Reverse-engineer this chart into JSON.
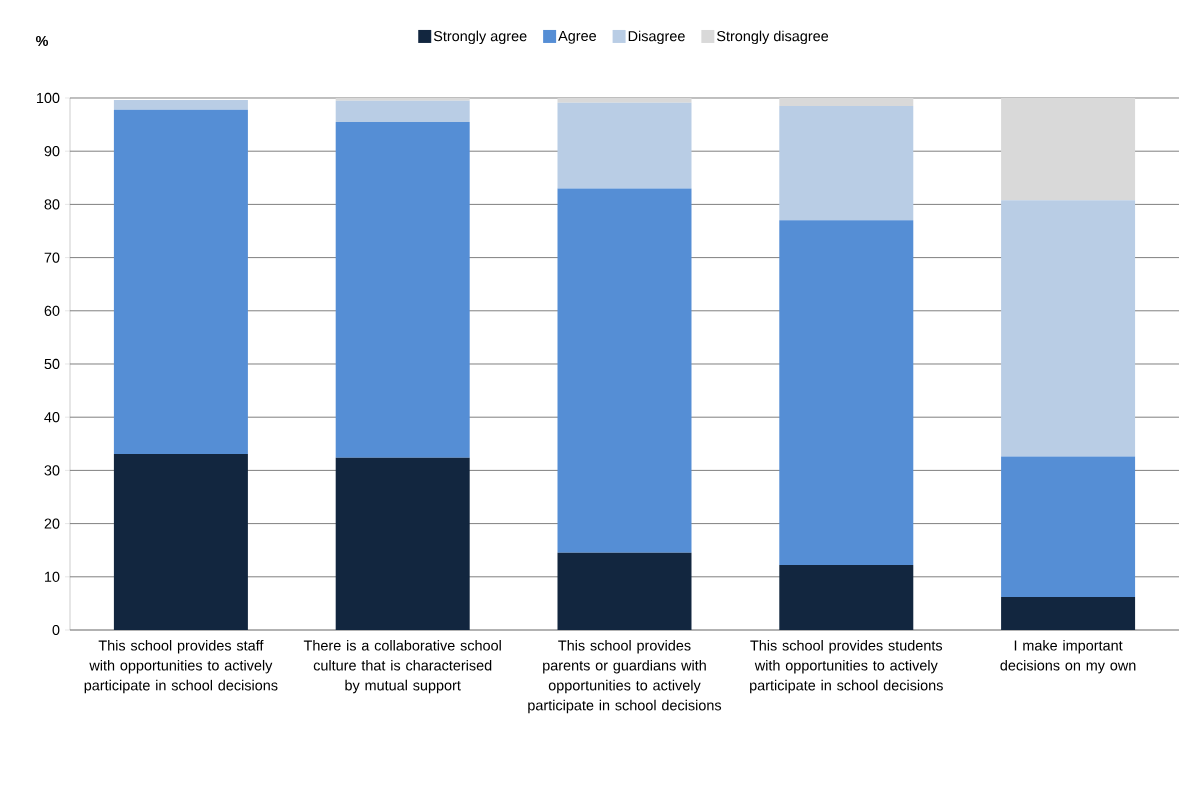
{
  "chart_data": {
    "type": "bar",
    "stacked": true,
    "ylabel": "%",
    "categories": [
      "This school provides staff with opportunities to actively participate in school decisions",
      "There is a collaborative school culture that is characterised by mutual support",
      "This school provides parents or guardians with opportunities to actively participate in school decisions",
      "This school provides students with opportunities to actively participate in school decisions",
      "I make important decisions on my own"
    ],
    "series": [
      {
        "name": "Strongly agree",
        "color": "#12263f",
        "values": [
          33.1,
          32.4,
          14.5,
          12.2,
          6.2
        ]
      },
      {
        "name": "Agree",
        "color": "#558ed5",
        "values": [
          64.7,
          63.1,
          68.5,
          64.8,
          26.4
        ]
      },
      {
        "name": "Disagree",
        "color": "#b9cde5",
        "values": [
          1.8,
          4.0,
          16.1,
          21.5,
          48.2
        ]
      },
      {
        "name": "Strongly disagree",
        "color": "#d9d9d9",
        "values": [
          0,
          0.5,
          0.9,
          1.5,
          19.2
        ]
      }
    ],
    "ylim": [
      0,
      100
    ],
    "yticks": [
      0,
      10,
      20,
      30,
      40,
      50,
      60,
      70,
      80,
      90,
      100
    ],
    "grid": "y",
    "legend": "top"
  }
}
